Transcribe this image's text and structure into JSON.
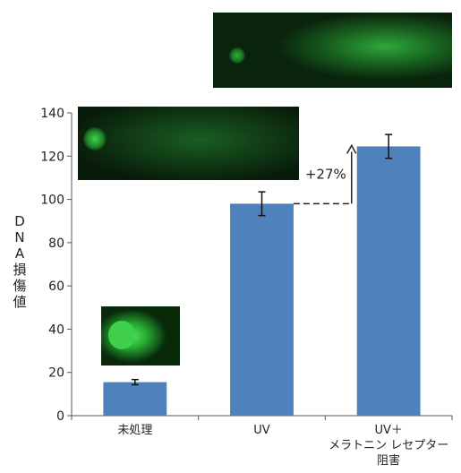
{
  "chart_data": {
    "type": "bar",
    "categories": [
      "未処理",
      "UV",
      "UV＋\nメラトニン レセプター\n阻害"
    ],
    "values": [
      15.5,
      98,
      124.5
    ],
    "errors": [
      1.2,
      5.5,
      5.5
    ],
    "ylabel": "DNA損傷値",
    "ylim": [
      0,
      140
    ],
    "yticks": [
      0,
      20,
      40,
      60,
      80,
      100,
      120,
      140
    ],
    "grid": false,
    "bar_color": "#4f81bd",
    "annotation": {
      "text": "+27%",
      "from_category": 1,
      "to_category": 2
    }
  }
}
